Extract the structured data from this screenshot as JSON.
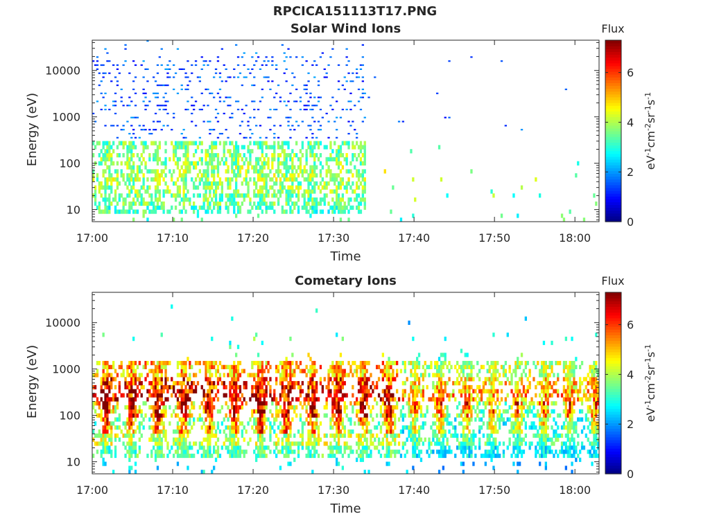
{
  "figure_title": "RPCICA151113T17.PNG",
  "chart_data": [
    {
      "type": "heatmap",
      "title": "Solar Wind Ions",
      "xlabel": "Time",
      "ylabel": "Energy (eV)",
      "y_scale": "log",
      "ylim": [
        5.5,
        45000
      ],
      "xlim_minutes": [
        0,
        63
      ],
      "x_ticks": [
        {
          "minute": 0,
          "label": "17:00"
        },
        {
          "minute": 10,
          "label": "17:10"
        },
        {
          "minute": 20,
          "label": "17:20"
        },
        {
          "minute": 30,
          "label": "17:30"
        },
        {
          "minute": 40,
          "label": "17:40"
        },
        {
          "minute": 50,
          "label": "17:50"
        },
        {
          "minute": 60,
          "label": "18:00"
        }
      ],
      "y_ticks": [
        {
          "value": 10,
          "label": "10"
        },
        {
          "value": 100,
          "label": "100"
        },
        {
          "value": 1000,
          "label": "1000"
        },
        {
          "value": 10000,
          "label": "10000"
        }
      ],
      "colorbar": {
        "title": "Flux",
        "unit_label": "eV-1cm-2sr-1s-1",
        "range": [
          0,
          7.3
        ],
        "ticks": [
          0,
          2,
          4,
          6
        ]
      },
      "active_until_minute": 34,
      "sparse_after": true,
      "high_energy_counts": true,
      "intensity_profile": [
        2.6,
        2.9,
        3.1,
        3.2,
        3.4,
        3.6,
        3.8,
        4.0,
        3.9,
        3.6,
        3.3
      ]
    },
    {
      "type": "heatmap",
      "title": "Cometary Ions",
      "xlabel": "Time",
      "ylabel": "Energy (eV)",
      "y_scale": "log",
      "ylim": [
        5.5,
        45000
      ],
      "xlim_minutes": [
        0,
        63
      ],
      "x_ticks": [
        {
          "minute": 0,
          "label": "17:00"
        },
        {
          "minute": 10,
          "label": "17:10"
        },
        {
          "minute": 20,
          "label": "17:20"
        },
        {
          "minute": 30,
          "label": "17:30"
        },
        {
          "minute": 40,
          "label": "17:40"
        },
        {
          "minute": 50,
          "label": "17:50"
        },
        {
          "minute": 60,
          "label": "18:00"
        }
      ],
      "y_ticks": [
        {
          "value": 10,
          "label": "10"
        },
        {
          "value": 100,
          "label": "100"
        },
        {
          "value": 1000,
          "label": "1000"
        },
        {
          "value": 10000,
          "label": "10000"
        }
      ],
      "colorbar": {
        "title": "Flux",
        "unit_label": "eV-1cm-2sr-1s-1",
        "range": [
          0,
          7.3
        ],
        "ticks": [
          0,
          2,
          4,
          6
        ]
      },
      "active_until_minute": 63,
      "sparse_after": false,
      "high_energy_counts": false,
      "intensity_profile": [
        3.0,
        3.4,
        4.2,
        5.2,
        6.2,
        6.6,
        6.0,
        5.0,
        4.2,
        3.4,
        2.8
      ]
    }
  ]
}
